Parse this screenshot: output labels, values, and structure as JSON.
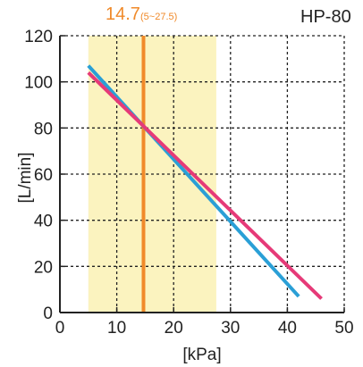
{
  "chart_data": {
    "type": "line",
    "title": "HP-80",
    "xlabel": "[kPa]",
    "ylabel": "[L/min]",
    "xlim": [
      0,
      50
    ],
    "ylim": [
      0,
      120
    ],
    "xticks": [
      0,
      10,
      20,
      30,
      40,
      50
    ],
    "yticks": [
      0,
      20,
      40,
      60,
      80,
      100,
      120
    ],
    "grid": "dashed",
    "operating_range": {
      "label": "(5~27.5)",
      "from": 5,
      "to": 27.5,
      "color": "#fbf3bf"
    },
    "rated_pressure": {
      "label": "14.7",
      "value": 14.7,
      "color": "#f08a2a"
    },
    "series": [
      {
        "color": "#2a9fd6",
        "points": [
          [
            5,
            107
          ],
          [
            42,
            7
          ]
        ]
      },
      {
        "color": "#e63a78",
        "points": [
          [
            5,
            104
          ],
          [
            46,
            6
          ]
        ]
      }
    ]
  }
}
